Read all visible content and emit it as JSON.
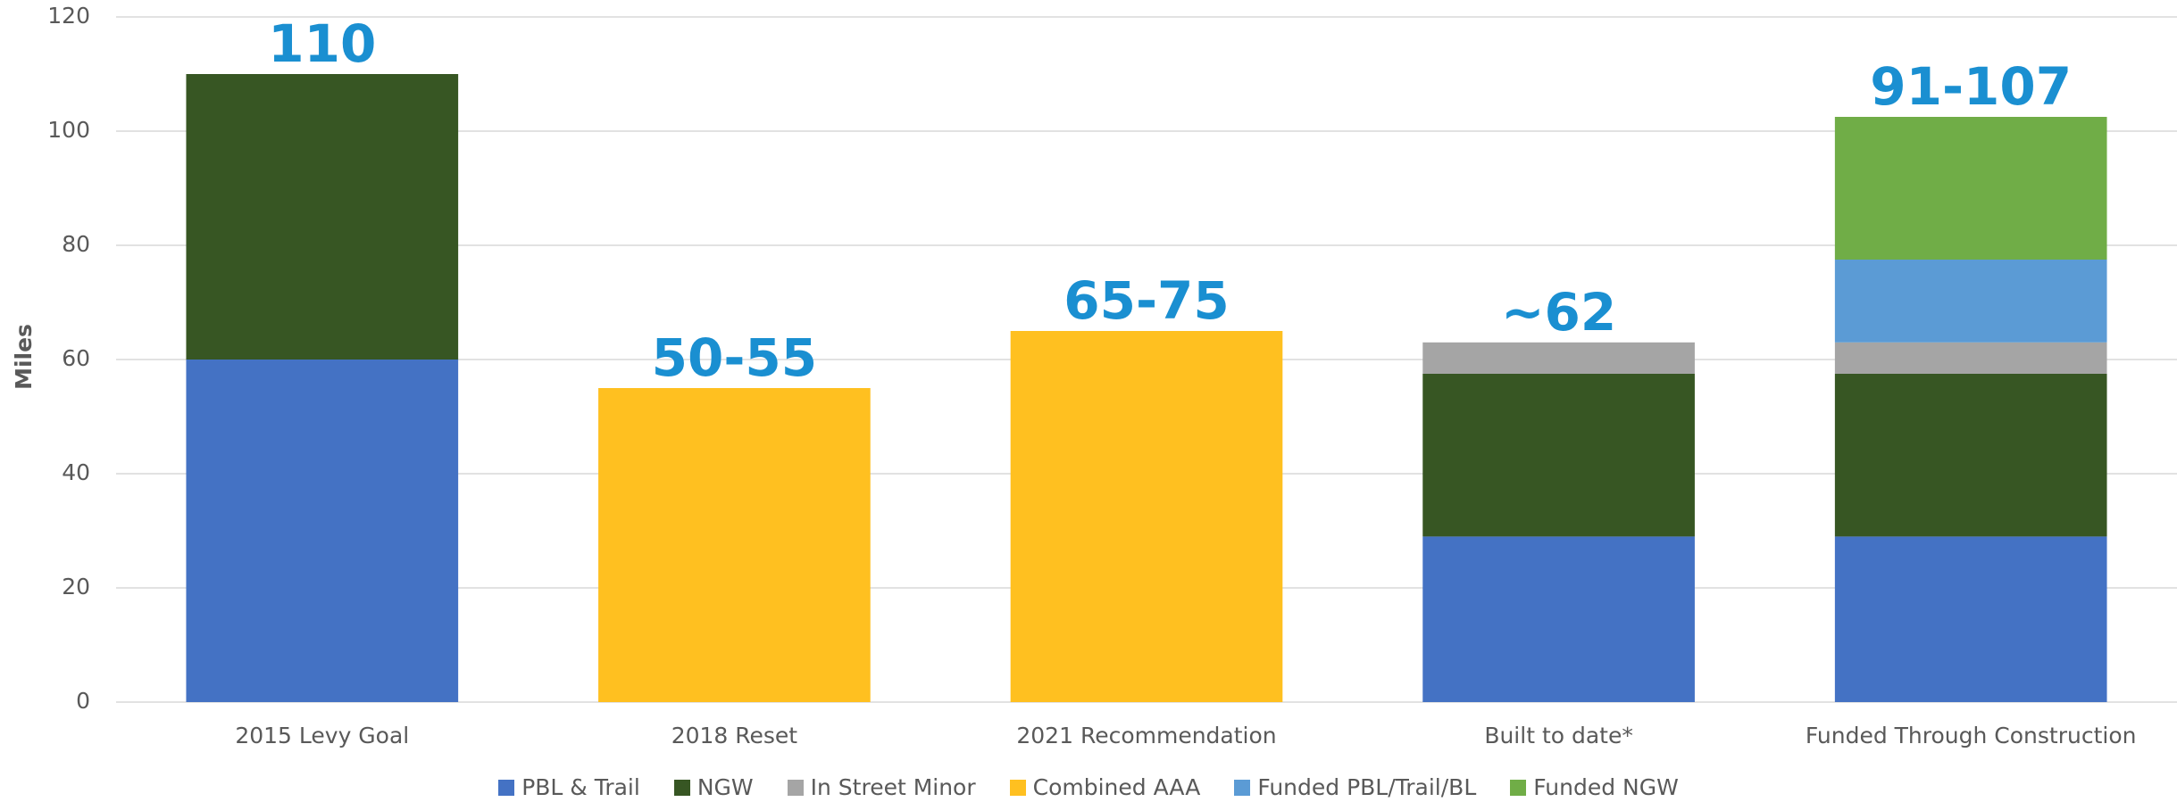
{
  "chart_data": {
    "type": "stacked_bar",
    "y_label": "Miles",
    "categories": [
      "2015 Levy Goal",
      "2018 Reset",
      "2021 Recommendation",
      "Built to date*",
      "Funded Through Construction"
    ],
    "series": [
      {
        "name": "PBL & Trail",
        "color": "#4472c4",
        "values": [
          60,
          null,
          null,
          29,
          29
        ]
      },
      {
        "name": "NGW",
        "color": "#375623",
        "values": [
          50,
          null,
          null,
          28.5,
          28.5
        ]
      },
      {
        "name": "In Street Minor",
        "color": "#a5a5a5",
        "values": [
          null,
          null,
          null,
          5.5,
          5.5
        ]
      },
      {
        "name": "Combined AAA",
        "color": "#ffc020",
        "values": [
          null,
          55,
          65,
          null,
          null
        ]
      },
      {
        "name": "Funded PBL/Trail/BL",
        "color": "#5b9bd5",
        "values": [
          null,
          null,
          null,
          null,
          14.5
        ]
      },
      {
        "name": "Funded NGW",
        "color": "#70ad47",
        "values": [
          null,
          null,
          null,
          null,
          25
        ]
      }
    ],
    "total_labels": [
      "110",
      "50-55",
      "65-75",
      "~62",
      "91-107"
    ],
    "ylim": [
      0,
      120
    ],
    "yticks": [
      0,
      20,
      40,
      60,
      80,
      100,
      120
    ],
    "grid": true
  }
}
